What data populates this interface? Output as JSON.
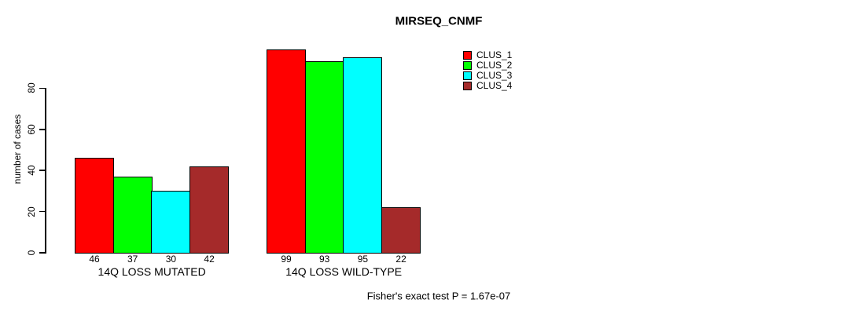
{
  "title": "MIRSEQ_CNMF",
  "footer": "Fisher's exact test P = 1.67e-07",
  "chart_data": {
    "type": "bar",
    "title": "MIRSEQ_CNMF",
    "xlabel": "",
    "ylabel": "number of cases",
    "yticks": [
      0,
      20,
      40,
      60,
      80
    ],
    "ylim": [
      0,
      105
    ],
    "grid": false,
    "legend_position": "right",
    "bar_value_labels": true,
    "categories": [
      "14Q LOSS MUTATED",
      "14Q LOSS WILD-TYPE"
    ],
    "series": [
      {
        "name": "CLUS_1",
        "color": "#FF0000",
        "values": [
          46,
          99
        ]
      },
      {
        "name": "CLUS_2",
        "color": "#00FF00",
        "values": [
          37,
          93
        ]
      },
      {
        "name": "CLUS_3",
        "color": "#00FFFF",
        "values": [
          30,
          95
        ]
      },
      {
        "name": "CLUS_4",
        "color": "#A52A2A",
        "values": [
          42,
          22
        ]
      }
    ],
    "footer": "Fisher's exact test P = 1.67e-07"
  }
}
